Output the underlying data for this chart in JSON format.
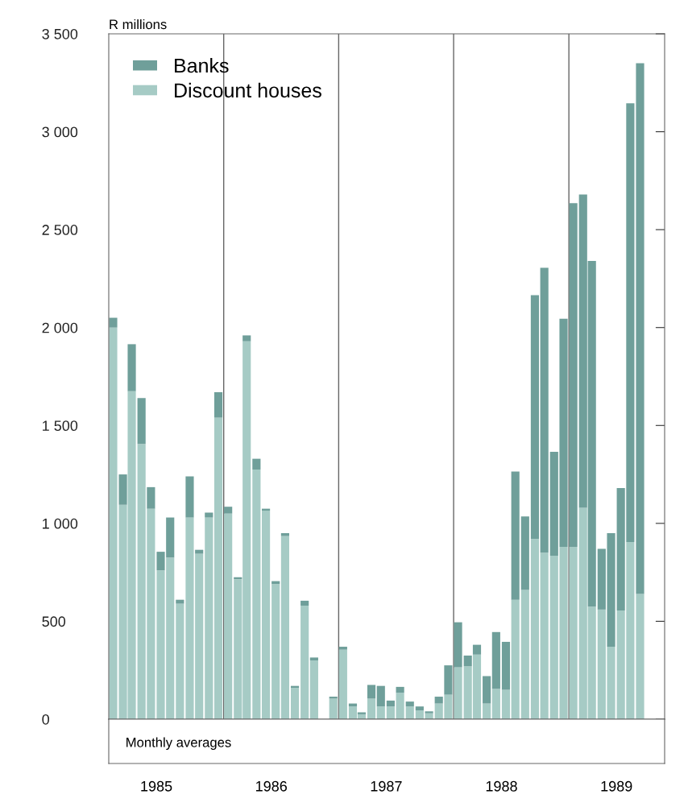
{
  "chart_data": {
    "type": "bar",
    "stacked": true,
    "ylabel": "R millions",
    "annotations": [
      "Monthly averages"
    ],
    "x": [
      "1985-01-15",
      "1985-02-15",
      "1985-03-15",
      "1985-04-15",
      "1985-05-15",
      "1985-06-15",
      "1985-07-15",
      "1985-08-15",
      "1985-09-15",
      "1985-10-15",
      "1985-11-15",
      "1985-12-15",
      "1986-01-15",
      "1986-02-15",
      "1986-03-15",
      "1986-04-15",
      "1986-05-15",
      "1986-06-15",
      "1986-07-15",
      "1986-08-15",
      "1986-09-15",
      "1986-10-15",
      "1986-11-15",
      "1986-12-15",
      "1987-01-15",
      "1987-02-15",
      "1987-03-15",
      "1987-04-15",
      "1987-05-15",
      "1987-06-15",
      "1987-07-15",
      "1987-08-15",
      "1987-09-15",
      "1987-10-15",
      "1987-11-15",
      "1987-12-15",
      "1988-01-15",
      "1988-02-15",
      "1988-03-15",
      "1988-04-15",
      "1988-05-15",
      "1988-06-15",
      "1988-07-15",
      "1988-08-15",
      "1988-09-15",
      "1988-10-15",
      "1988-11-15",
      "1988-12-15",
      "1989-01-15",
      "1989-02-15",
      "1989-03-15",
      "1989-04-15",
      "1989-05-15",
      "1989-06-15",
      "1989-07-15",
      "1989-08-15"
    ],
    "series": [
      {
        "name": "Discount houses",
        "color": "#a6cbc5",
        "values": [
          2000,
          1095,
          1675,
          1405,
          1075,
          760,
          825,
          590,
          1030,
          845,
          1030,
          1540,
          1050,
          715,
          1930,
          1275,
          1065,
          690,
          935,
          160,
          580,
          300,
          0,
          105,
          355,
          65,
          25,
          105,
          65,
          65,
          135,
          65,
          45,
          30,
          80,
          125,
          265,
          270,
          330,
          80,
          155,
          150,
          610,
          660,
          920,
          850,
          835,
          880,
          880,
          1080,
          575,
          560,
          370,
          555,
          905,
          640
        ]
      },
      {
        "name": "Banks",
        "color": "#6f9f9a",
        "values": [
          50,
          155,
          240,
          235,
          110,
          95,
          205,
          20,
          210,
          20,
          25,
          130,
          35,
          10,
          30,
          55,
          10,
          15,
          15,
          10,
          25,
          15,
          0,
          10,
          15,
          15,
          10,
          70,
          105,
          30,
          30,
          25,
          20,
          10,
          35,
          150,
          230,
          55,
          50,
          140,
          290,
          245,
          655,
          375,
          1245,
          1455,
          530,
          1165,
          1755,
          1600,
          1765,
          310,
          580,
          625,
          2240,
          2710
        ]
      }
    ],
    "xlim": [
      "1985-01",
      "1989-11"
    ],
    "xticks": [
      {
        "value": "1985-06",
        "label": "1985"
      },
      {
        "value": "1986-06",
        "label": "1986"
      },
      {
        "value": "1987-06",
        "label": "1987"
      },
      {
        "value": "1988-06",
        "label": "1988"
      },
      {
        "value": "1989-06",
        "label": "1989"
      }
    ],
    "ylim": [
      0,
      3500
    ],
    "yticks": [
      {
        "value": 0,
        "label": "0"
      },
      {
        "value": 500,
        "label": "500"
      },
      {
        "value": 1000,
        "label": "1 000"
      },
      {
        "value": 1500,
        "label": "1 500"
      },
      {
        "value": 2000,
        "label": "2 000"
      },
      {
        "value": 2500,
        "label": "2 500"
      },
      {
        "value": 3000,
        "label": "3 000"
      },
      {
        "value": 3500,
        "label": "3 500"
      }
    ],
    "ref_lines": [
      {
        "axis": "x",
        "value": "1986-01",
        "color": "#666666"
      },
      {
        "axis": "x",
        "value": "1987-01",
        "color": "#666666"
      },
      {
        "axis": "x",
        "value": "1988-01",
        "color": "#666666"
      },
      {
        "axis": "x",
        "value": "1989-01",
        "color": "#666666"
      }
    ],
    "legend": "top left",
    "grid": false
  }
}
